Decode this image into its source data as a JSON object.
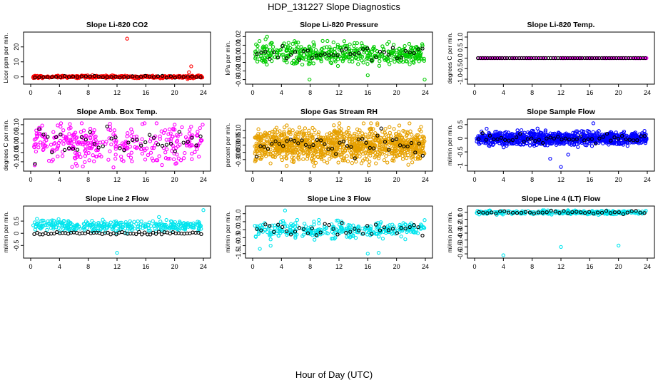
{
  "figure": {
    "title": "HDP_131227  Slope Diagnostics",
    "xlabel": "Hour of Day (UTC)"
  },
  "chart_data": [
    {
      "type": "scatter",
      "title": "Slope Li-820 CO2",
      "ylabel": "Licor ppm per min.",
      "xlim": [
        0,
        24
      ],
      "xticks": [
        "0",
        "4",
        "8",
        "12",
        "16",
        "20",
        "24"
      ],
      "ylim": [
        -3,
        28
      ],
      "yticks": [
        0,
        10,
        20
      ],
      "ytick_labels": [
        "0",
        "10",
        "20"
      ],
      "color": "#ff0000",
      "series": [
        {
          "name": "all",
          "center": 0,
          "spread": 0.4,
          "n": 400
        },
        {
          "name": "hourly",
          "color": "#000000",
          "center": 0,
          "spread": 0.3,
          "n": 40
        }
      ],
      "outliers": [
        [
          13.4,
          25.5
        ],
        [
          22.3,
          7
        ],
        [
          22,
          3
        ],
        [
          21.8,
          -1.5
        ]
      ]
    },
    {
      "type": "scatter",
      "title": "Slope Li-820 Pressure",
      "ylabel": "kPa per min.",
      "xlim": [
        0,
        24
      ],
      "xticks": [
        "0",
        "4",
        "8",
        "12",
        "16",
        "20",
        "24"
      ],
      "ylim": [
        -0.032,
        0.022
      ],
      "yticks": [
        -0.03,
        -0.02,
        -0.01,
        0,
        0.01,
        0.02
      ],
      "ytick_labels": [
        "-0.03",
        "-0.02",
        "-0.01",
        "0.00",
        "0.01",
        "0.02"
      ],
      "color": "#00cc00",
      "series": [
        {
          "name": "all",
          "center": 0,
          "spread": 0.006,
          "n": 450
        },
        {
          "name": "hourly",
          "color": "#000000",
          "center": 0,
          "spread": 0.004,
          "n": 40
        }
      ],
      "outliers": [
        [
          7.9,
          -0.03
        ],
        [
          16,
          -0.025
        ],
        [
          23.9,
          -0.03
        ],
        [
          2,
          0.02
        ],
        [
          1.8,
          0.017
        ]
      ]
    },
    {
      "type": "scatter",
      "title": "Slope Li-820 Temp.",
      "ylabel": "degrees C per min.",
      "xlim": [
        0,
        24
      ],
      "xticks": [
        "0",
        "4",
        "8",
        "12",
        "16",
        "20",
        "24"
      ],
      "ylim": [
        -1.1,
        1.1
      ],
      "yticks": [
        -1,
        -0.5,
        0,
        0.5,
        1
      ],
      "ytick_labels": [
        "-1.0",
        "-0.5",
        "0.0",
        "0.5",
        "1.0"
      ],
      "color": "#ff00ff",
      "series": [
        {
          "name": "all",
          "center": 0,
          "spread": 0,
          "n": 140
        },
        {
          "name": "hourly",
          "color": "#000000",
          "center": 0,
          "spread": 0,
          "n": 70
        }
      ],
      "outliers": []
    },
    {
      "type": "scatter",
      "title": "Slope Amb. Box Temp.",
      "ylabel": "degrees C per min.",
      "xlim": [
        0,
        24
      ],
      "xticks": [
        "0",
        "4",
        "8",
        "12",
        "16",
        "20",
        "24"
      ],
      "ylim": [
        -0.135,
        0.115
      ],
      "yticks": [
        -0.1,
        -0.05,
        0,
        0.05,
        0.1
      ],
      "ytick_labels": [
        "-0.10",
        "-0.05",
        "0.00",
        "0.05",
        "0.10"
      ],
      "color": "#ff00ff",
      "series": [
        {
          "name": "all",
          "center": 0,
          "spread": 0.05,
          "n": 330
        },
        {
          "name": "hourly",
          "color": "#000000",
          "center": 0,
          "spread": 0.045,
          "n": 40
        }
      ],
      "outliers": [
        [
          11.5,
          -0.13
        ],
        [
          20,
          0.1
        ],
        [
          23.9,
          0.1
        ]
      ]
    },
    {
      "type": "scatter",
      "title": "Slope Gas Stream RH",
      "ylabel": "percent per min.",
      "xlim": [
        0,
        24
      ],
      "xticks": [
        "0",
        "4",
        "8",
        "12",
        "16",
        "20",
        "24"
      ],
      "ylim": [
        -0.16,
        0.16
      ],
      "yticks": [
        -0.1,
        -0.05,
        0,
        0.05,
        0.1
      ],
      "ytick_labels": [
        "-0.10",
        "-0.05",
        "0.00",
        "0.05",
        "0.10"
      ],
      "color": "#e6a000",
      "series": [
        {
          "name": "all",
          "center": 0,
          "spread": 0.055,
          "n": 1100
        },
        {
          "name": "hourly",
          "color": "#000000",
          "center": 0,
          "spread": 0.04,
          "n": 45
        }
      ],
      "outliers": [
        [
          0.8,
          0.11
        ],
        [
          21.8,
          0.15
        ]
      ]
    },
    {
      "type": "scatter",
      "title": "Slope Sample Flow",
      "ylabel": "ml/min per min.",
      "xlim": [
        0,
        24
      ],
      "xticks": [
        "0",
        "4",
        "8",
        "12",
        "16",
        "20",
        "24"
      ],
      "ylim": [
        -1.1,
        0.6
      ],
      "yticks": [
        -1,
        -0.5,
        0,
        0.5
      ],
      "ytick_labels": [
        "-1",
        "-0.5",
        "0",
        "0.5"
      ],
      "color": "#0000ff",
      "series": [
        {
          "name": "all",
          "center": 0,
          "spread": 0.12,
          "n": 900
        },
        {
          "name": "hourly",
          "color": "#000000",
          "center": 0,
          "spread": 0.08,
          "n": 45
        }
      ],
      "outliers": [
        [
          12,
          -1.05
        ],
        [
          16.5,
          0.55
        ],
        [
          10.5,
          -0.75
        ],
        [
          13,
          -0.6
        ]
      ]
    },
    {
      "type": "scatter",
      "title": "Slope Line 2 Flow",
      "ylabel": "ml/min per min.",
      "xlim": [
        0,
        24
      ],
      "xticks": [
        "0",
        "4",
        "8",
        "12",
        "16",
        "20",
        "24"
      ],
      "ylim": [
        -0.9,
        1.0
      ],
      "yticks": [
        -0.5,
        0,
        0.5
      ],
      "ytick_labels": [
        "-0.5",
        "0",
        "0.5"
      ],
      "color": "#00e5ee",
      "series": [
        {
          "name": "all",
          "center": 0.3,
          "spread": 0.12,
          "n": 320
        },
        {
          "name": "hourly",
          "color": "#000000",
          "center": 0,
          "spread": 0.03,
          "n": 60
        }
      ],
      "outliers": [
        [
          12,
          -0.8
        ],
        [
          24,
          0.95
        ]
      ]
    },
    {
      "type": "scatter",
      "title": "Slope Line 3 Flow",
      "ylabel": "ml/min per min.",
      "xlim": [
        0,
        24
      ],
      "xticks": [
        "0",
        "4",
        "8",
        "12",
        "16",
        "20",
        "24"
      ],
      "ylim": [
        -1.6,
        1.3
      ],
      "yticks": [
        -1.5,
        -1,
        -0.5,
        0,
        0.5,
        1
      ],
      "ytick_labels": [
        "-1.5",
        "-1.0",
        "-0.5",
        "0.0",
        "0.5",
        "1.0"
      ],
      "color": "#00e5ee",
      "series": [
        {
          "name": "all",
          "center": 0,
          "spread": 0.25,
          "n": 320
        },
        {
          "name": "hourly",
          "color": "#000000",
          "center": 0,
          "spread": 0.2,
          "n": 40
        }
      ],
      "outliers": [
        [
          4.5,
          1.2
        ],
        [
          16,
          -1.5
        ],
        [
          17.5,
          -1.45
        ],
        [
          23.9,
          0.6
        ],
        [
          1,
          -1.2
        ],
        [
          2.5,
          -1.0
        ]
      ]
    },
    {
      "type": "scatter",
      "title": "Slope Line 4 (LT) Flow",
      "ylabel": "ml/min per min.",
      "xlim": [
        0,
        24
      ],
      "xticks": [
        "0",
        "4",
        "8",
        "12",
        "16",
        "20",
        "24"
      ],
      "ylim": [
        -0.62,
        0.05
      ],
      "yticks": [
        -0.6,
        -0.5,
        -0.4,
        -0.3,
        -0.2,
        -0.1,
        0
      ],
      "ytick_labels": [
        "-0.6",
        "-0.5",
        "-0.4",
        "-0.3",
        "-0.2",
        "-0.1",
        "0.0"
      ],
      "color": "#00e5ee",
      "series": [
        {
          "name": "all",
          "center": 0,
          "spread": 0.015,
          "n": 260
        },
        {
          "name": "hourly",
          "color": "#000000",
          "center": 0,
          "spread": 0.01,
          "n": 40
        }
      ],
      "outliers": [
        [
          4,
          -0.62
        ],
        [
          12,
          -0.5
        ],
        [
          20,
          -0.48
        ]
      ]
    }
  ]
}
